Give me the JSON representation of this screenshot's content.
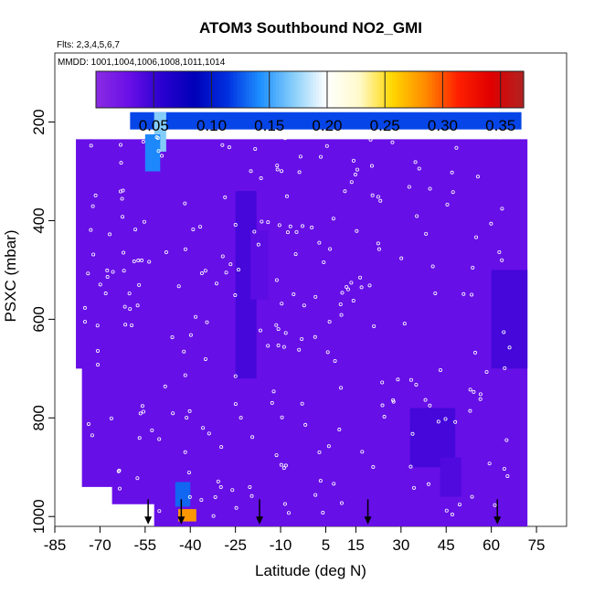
{
  "chart_data": {
    "type": "heatmap",
    "title": "ATOM3 Southbound NO2_GMI",
    "subtitle_flights": "Flts: 2,3,4,5,6,7",
    "subtitle_dates": "MMDD: 1001,1004,1006,1008,1011,1014",
    "xlabel": "Latitude (deg N)",
    "ylabel": "PSXC (mbar)",
    "xlim": [
      -85,
      85
    ],
    "ylim": [
      1020,
      60
    ],
    "y_reversed": true,
    "x_ticks": [
      "-85",
      "-70",
      "-55",
      "-40",
      "-25",
      "-10",
      "5",
      "15",
      "30",
      "45",
      "60",
      "75"
    ],
    "x_tick_values": [
      -85,
      -70,
      -55,
      -40,
      -25,
      -10,
      5,
      15,
      30,
      45,
      60,
      75
    ],
    "y_ticks": [
      "200",
      "400",
      "600",
      "800",
      "1000"
    ],
    "y_tick_values": [
      200,
      400,
      600,
      800,
      1000
    ],
    "colorbar": {
      "range": [
        0.0,
        0.37
      ],
      "tick_labels": [
        "0.05",
        "0.10",
        "0.15",
        "0.20",
        "0.25",
        "0.30",
        "0.35"
      ],
      "tick_values": [
        0.05,
        0.1,
        0.15,
        0.2,
        0.25,
        0.3,
        0.35
      ],
      "colors": [
        "#8a2be2",
        "#6a10e8",
        "#2a00d0",
        "#0000b8",
        "#0030e0",
        "#1e90ff",
        "#87cefa",
        "#ffffff",
        "#fffacd",
        "#ffd700",
        "#ff8c00",
        "#ff2000",
        "#e00000",
        "#b22222"
      ]
    },
    "grid": false,
    "background_value": 0.03,
    "value_cells": [
      {
        "lat": [
          -60,
          70
        ],
        "p": [
          180,
          215
        ],
        "v": 0.12
      },
      {
        "lat": [
          -52,
          -48
        ],
        "p": [
          180,
          260
        ],
        "v": 0.17
      },
      {
        "lat": [
          -55,
          -50
        ],
        "p": [
          225,
          300
        ],
        "v": 0.14
      },
      {
        "lat": [
          -25,
          -18
        ],
        "p": [
          340,
          720
        ],
        "v": 0.045
      },
      {
        "lat": [
          -20,
          -14
        ],
        "p": [
          420,
          560
        ],
        "v": 0.035
      },
      {
        "lat": [
          33,
          48
        ],
        "p": [
          780,
          900
        ],
        "v": 0.045
      },
      {
        "lat": [
          43,
          50
        ],
        "p": [
          880,
          960
        ],
        "v": 0.04
      },
      {
        "lat": [
          60,
          72
        ],
        "p": [
          500,
          700
        ],
        "v": 0.045
      },
      {
        "lat": [
          -45,
          -40
        ],
        "p": [
          930,
          980
        ],
        "v": 0.13
      },
      {
        "lat": [
          -44,
          -38
        ],
        "p": [
          985,
          1010
        ],
        "v": 0.28
      }
    ],
    "flight_markers_lat": [
      -54,
      -43,
      -17,
      19,
      62
    ],
    "legend_placement": "top"
  }
}
